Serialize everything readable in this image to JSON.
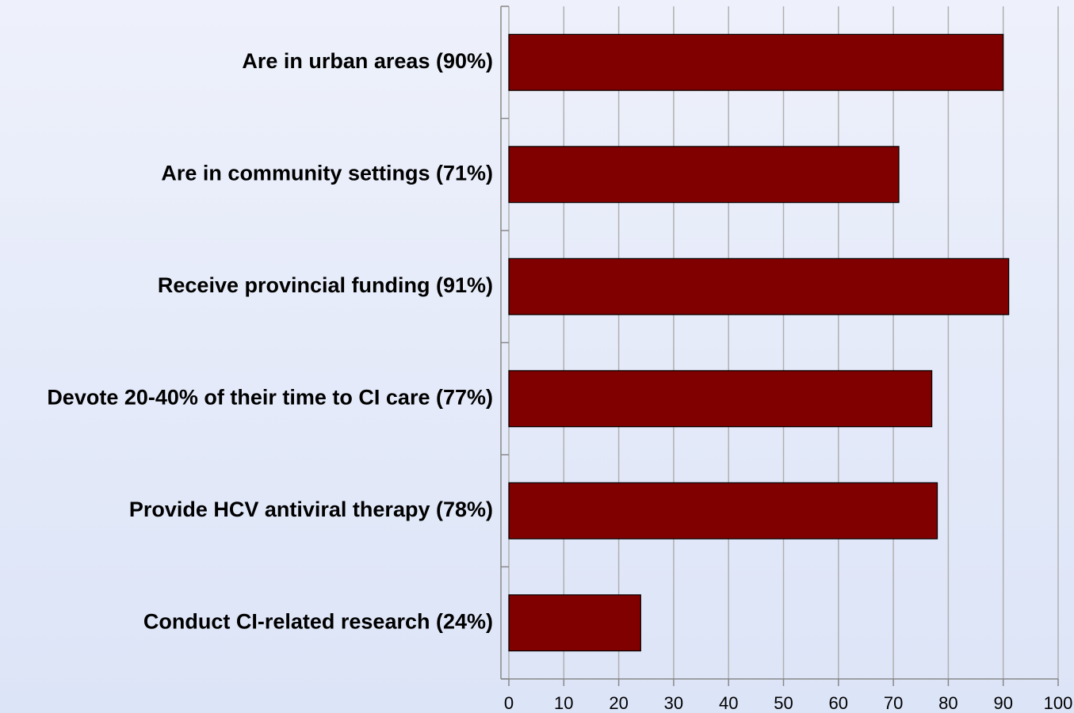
{
  "chart_data": {
    "type": "bar",
    "orientation": "horizontal",
    "categories": [
      "Are in urban areas (90%)",
      "Are in community settings (71%)",
      "Receive provincial funding (91%)",
      "Devote 20-40% of their time to CI care (77%)",
      "Provide HCV antiviral therapy (78%)",
      "Conduct CI-related research (24%)"
    ],
    "values": [
      90,
      71,
      91,
      77,
      78,
      24
    ],
    "color": "#800000",
    "xlim": [
      0,
      100
    ],
    "xticks": [
      0,
      10,
      20,
      30,
      40,
      50,
      60,
      70,
      80,
      90,
      100
    ],
    "grid": true
  }
}
